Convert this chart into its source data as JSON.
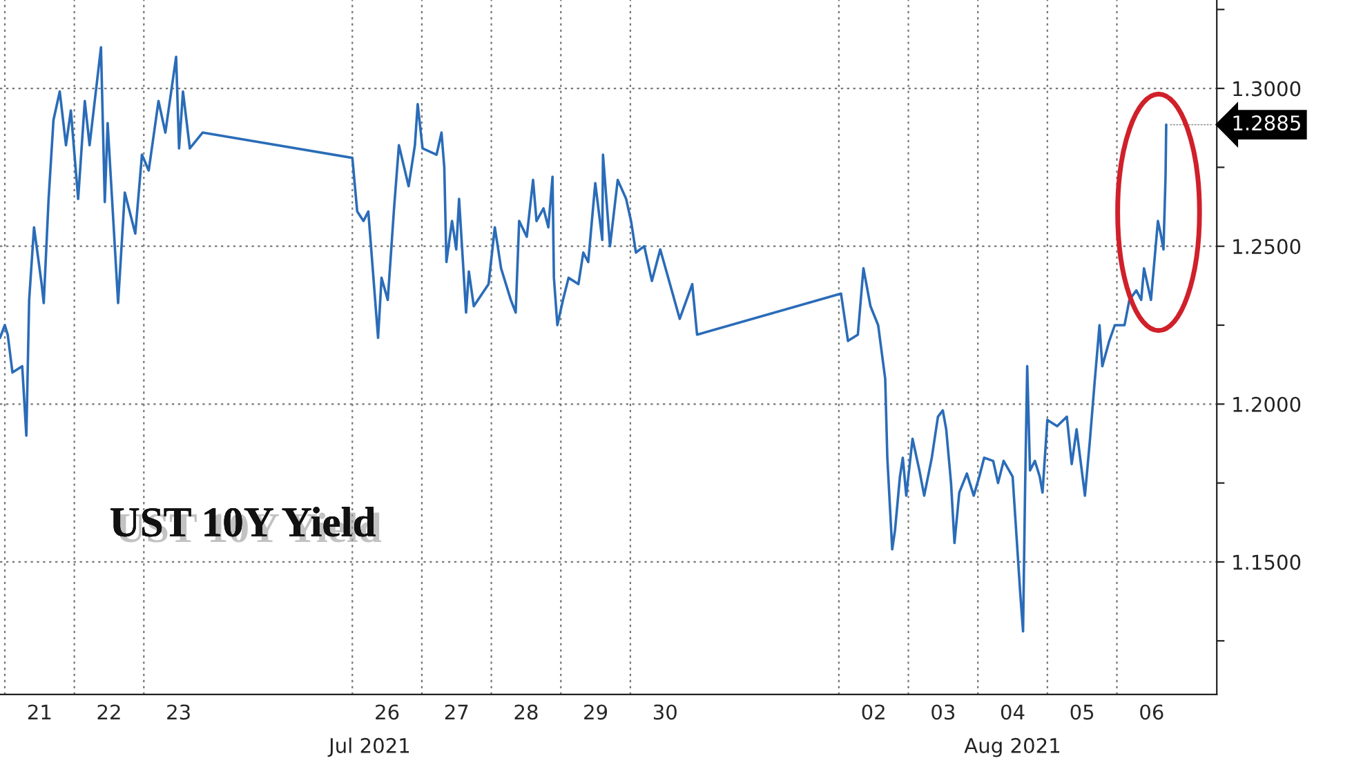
{
  "chart_data": {
    "type": "line",
    "title": "UST 10Y Yield",
    "annotations": [
      "Jul 2021",
      "Aug 2021",
      {
        "text": "1.2885",
        "x": "2021-08-06T17:02",
        "y": 1.2885
      }
    ],
    "xlim": [
      "2021-07-20T22:20",
      "2021-08-07T10:30"
    ],
    "ylim": [
      1.108,
      1.328
    ],
    "xticks": [
      {
        "value": "2021-07-21",
        "label": null
      },
      {
        "value": "2021-07-21T12:00",
        "label": "21"
      },
      {
        "value": "2021-07-22",
        "label": null
      },
      {
        "value": "2021-07-22T12:00",
        "label": "22"
      },
      {
        "value": "2021-07-23",
        "label": null
      },
      {
        "value": "2021-07-23T12:00",
        "label": "23"
      },
      {
        "value": "2021-07-26",
        "label": null
      },
      {
        "value": "2021-07-26T12:00",
        "label": "26"
      },
      {
        "value": "2021-07-27",
        "label": null
      },
      {
        "value": "2021-07-27T12:00",
        "label": "27"
      },
      {
        "value": "2021-07-28",
        "label": null
      },
      {
        "value": "2021-07-28T12:00",
        "label": "28"
      },
      {
        "value": "2021-07-29",
        "label": null
      },
      {
        "value": "2021-07-29T12:00",
        "label": "29"
      },
      {
        "value": "2021-07-30",
        "label": null
      },
      {
        "value": "2021-07-30T12:00",
        "label": "30"
      },
      {
        "value": "2021-08-02",
        "label": null
      },
      {
        "value": "2021-08-02T12:00",
        "label": "02"
      },
      {
        "value": "2021-08-03",
        "label": null
      },
      {
        "value": "2021-08-03T12:00",
        "label": "03"
      },
      {
        "value": "2021-08-04",
        "label": null
      },
      {
        "value": "2021-08-04T12:00",
        "label": "04"
      },
      {
        "value": "2021-08-05",
        "label": null
      },
      {
        "value": "2021-08-05T12:00",
        "label": "05"
      },
      {
        "value": "2021-08-06",
        "label": null
      },
      {
        "value": "2021-08-06T12:00",
        "label": "06"
      }
    ],
    "yticks": [
      {
        "value": 1.125,
        "label": null
      },
      {
        "value": 1.15,
        "label": "1.1500"
      },
      {
        "value": 1.175,
        "label": null
      },
      {
        "value": 1.2,
        "label": "1.2000"
      },
      {
        "value": 1.225,
        "label": null
      },
      {
        "value": 1.25,
        "label": "1.2500"
      },
      {
        "value": 1.275,
        "label": null
      },
      {
        "value": 1.3,
        "label": "1.3000"
      },
      {
        "value": 1.325,
        "label": null
      }
    ],
    "grid": true,
    "series": [
      {
        "color": "#2a6cb8",
        "x": [
          "2021-07-20T22:20",
          "2021-07-21T00:00",
          "2021-07-21T01:00",
          "2021-07-21T02:38",
          "2021-07-21T06:00",
          "2021-07-21T07:26",
          "2021-07-21T08:24",
          "2021-07-21T10:05",
          "2021-07-21T12:43",
          "2021-07-21T13:26",
          "2021-07-21T15:07",
          "2021-07-21T16:48",
          "2021-07-21T18:58",
          "2021-07-21T21:07",
          "2021-07-21T22:48",
          "2021-07-22T01:19",
          "2021-07-22T03:37",
          "2021-07-22T05:16",
          "2021-07-22T09:12",
          "2021-07-22T10:31",
          "2021-07-22T11:30",
          "2021-07-22T15:07",
          "2021-07-22T17:26",
          "2021-07-22T21:03",
          "2021-07-22T23:21",
          "2021-07-23T01:41",
          "2021-07-23T05:04",
          "2021-07-23T07:26",
          "2021-07-23T11:09",
          "2021-07-23T12:10",
          "2021-07-23T13:31",
          "2021-07-23T15:53",
          "2021-07-23T20:17",
          "2021-07-26T00:00",
          "2021-07-26T01:41",
          "2021-07-26T03:50",
          "2021-07-26T05:31",
          "2021-07-26T08:53",
          "2021-07-26T10:05",
          "2021-07-26T12:14",
          "2021-07-26T14:24",
          "2021-07-26T16:05",
          "2021-07-26T19:26",
          "2021-07-26T21:36",
          "2021-07-26T22:34",
          "2021-07-27T00:15",
          "2021-07-27T05:05",
          "2021-07-27T06:47",
          "2021-07-27T07:45",
          "2021-07-27T08:29",
          "2021-07-27T10:25",
          "2021-07-27T11:53",
          "2021-07-27T12:51",
          "2021-07-27T15:16",
          "2021-07-27T16:14",
          "2021-07-27T17:56",
          "2021-07-27T23:02",
          "2021-07-28T01:12",
          "2021-07-28T03:22",
          "2021-07-28T06:43",
          "2021-07-28T08:24",
          "2021-07-28T09:36",
          "2021-07-28T12:14",
          "2021-07-28T14:24",
          "2021-07-28T15:36",
          "2021-07-28T18:00",
          "2021-07-28T19:41",
          "2021-07-28T21:07",
          "2021-07-28T21:36",
          "2021-07-28T22:48",
          "2021-07-29T00:44",
          "2021-07-29T02:40",
          "2021-07-29T06:04",
          "2021-07-29T07:45",
          "2021-07-29T09:27",
          "2021-07-29T11:53",
          "2021-07-29T14:18",
          "2021-07-29T14:33",
          "2021-07-29T16:58",
          "2021-07-29T19:38",
          "2021-07-29T22:32",
          "2021-07-30T00:14",
          "2021-07-30T01:55",
          "2021-07-30T04:48",
          "2021-07-30T07:26",
          "2021-07-30T10:19",
          "2021-07-30T13:41",
          "2021-07-30T17:02",
          "2021-07-30T21:22",
          "2021-07-30T23:02",
          "2021-08-02T00:44",
          "2021-08-02T03:09",
          "2021-08-02T06:33",
          "2021-08-02T08:29",
          "2021-08-02T10:55",
          "2021-08-02T13:34",
          "2021-08-02T16:00",
          "2021-08-02T16:44",
          "2021-08-02T18:25",
          "2021-08-02T19:23",
          "2021-08-02T21:05",
          "2021-08-02T22:04",
          "2021-08-02T23:16",
          "2021-08-03T01:26",
          "2021-08-03T03:48",
          "2021-08-03T05:28",
          "2021-08-03T08:05",
          "2021-08-03T10:13",
          "2021-08-03T11:53",
          "2021-08-03T13:04",
          "2021-08-03T14:44",
          "2021-08-03T15:55",
          "2021-08-03T17:35",
          "2021-08-03T20:12",
          "2021-08-03T22:34",
          "2021-08-04T00:29",
          "2021-08-04T02:10",
          "2021-08-04T05:17",
          "2021-08-04T06:58",
          "2021-08-04T08:53",
          "2021-08-04T12:00",
          "2021-08-04T14:38",
          "2021-08-04T15:36",
          "2021-08-04T16:19",
          "2021-08-04T17:02",
          "2021-08-04T18:00",
          "2021-08-04T19:41",
          "2021-08-04T21:22",
          "2021-08-04T22:19",
          "2021-08-05T00:00",
          "2021-08-05T03:22",
          "2021-08-05T06:43",
          "2021-08-05T08:24",
          "2021-08-05T10:05",
          "2021-08-05T12:58",
          "2021-08-05T14:38",
          "2021-08-05T16:19",
          "2021-08-05T18:00",
          "2021-08-05T18:58",
          "2021-08-05T21:22",
          "2021-08-05T23:17",
          "2021-08-06T02:38",
          "2021-08-06T04:19",
          "2021-08-06T06:43",
          "2021-08-06T08:24",
          "2021-08-06T09:22",
          "2021-08-06T11:46",
          "2021-08-06T14:10",
          "2021-08-06T15:07",
          "2021-08-06T16:05",
          "2021-08-06T16:48",
          "2021-08-06T17:02"
        ],
        "values": [
          1.221,
          1.225,
          1.222,
          1.21,
          1.212,
          1.19,
          1.233,
          1.256,
          1.238,
          1.232,
          1.265,
          1.29,
          1.299,
          1.282,
          1.293,
          1.265,
          1.296,
          1.282,
          1.313,
          1.264,
          1.289,
          1.232,
          1.267,
          1.254,
          1.279,
          1.274,
          1.296,
          1.286,
          1.31,
          1.281,
          1.299,
          1.281,
          1.286,
          1.278,
          1.261,
          1.258,
          1.261,
          1.221,
          1.24,
          1.233,
          1.262,
          1.282,
          1.269,
          1.282,
          1.295,
          1.281,
          1.279,
          1.286,
          1.275,
          1.245,
          1.258,
          1.249,
          1.265,
          1.229,
          1.242,
          1.231,
          1.238,
          1.256,
          1.243,
          1.233,
          1.229,
          1.258,
          1.253,
          1.271,
          1.258,
          1.262,
          1.256,
          1.272,
          1.24,
          1.225,
          1.233,
          1.24,
          1.238,
          1.248,
          1.245,
          1.27,
          1.252,
          1.279,
          1.25,
          1.271,
          1.265,
          1.258,
          1.248,
          1.25,
          1.239,
          1.249,
          1.238,
          1.227,
          1.238,
          1.222,
          1.235,
          1.22,
          1.222,
          1.243,
          1.231,
          1.225,
          1.208,
          1.183,
          1.154,
          1.16,
          1.177,
          1.183,
          1.171,
          1.189,
          1.179,
          1.171,
          1.183,
          1.196,
          1.198,
          1.192,
          1.175,
          1.156,
          1.172,
          1.178,
          1.171,
          1.177,
          1.183,
          1.182,
          1.175,
          1.182,
          1.177,
          1.14,
          1.128,
          1.174,
          1.212,
          1.179,
          1.182,
          1.177,
          1.172,
          1.195,
          1.193,
          1.196,
          1.181,
          1.192,
          1.171,
          1.188,
          1.207,
          1.225,
          1.212,
          1.22,
          1.225,
          1.225,
          1.233,
          1.236,
          1.233,
          1.243,
          1.233,
          1.258,
          1.254,
          1.249,
          1.272,
          1.2885
        ]
      }
    ]
  }
}
